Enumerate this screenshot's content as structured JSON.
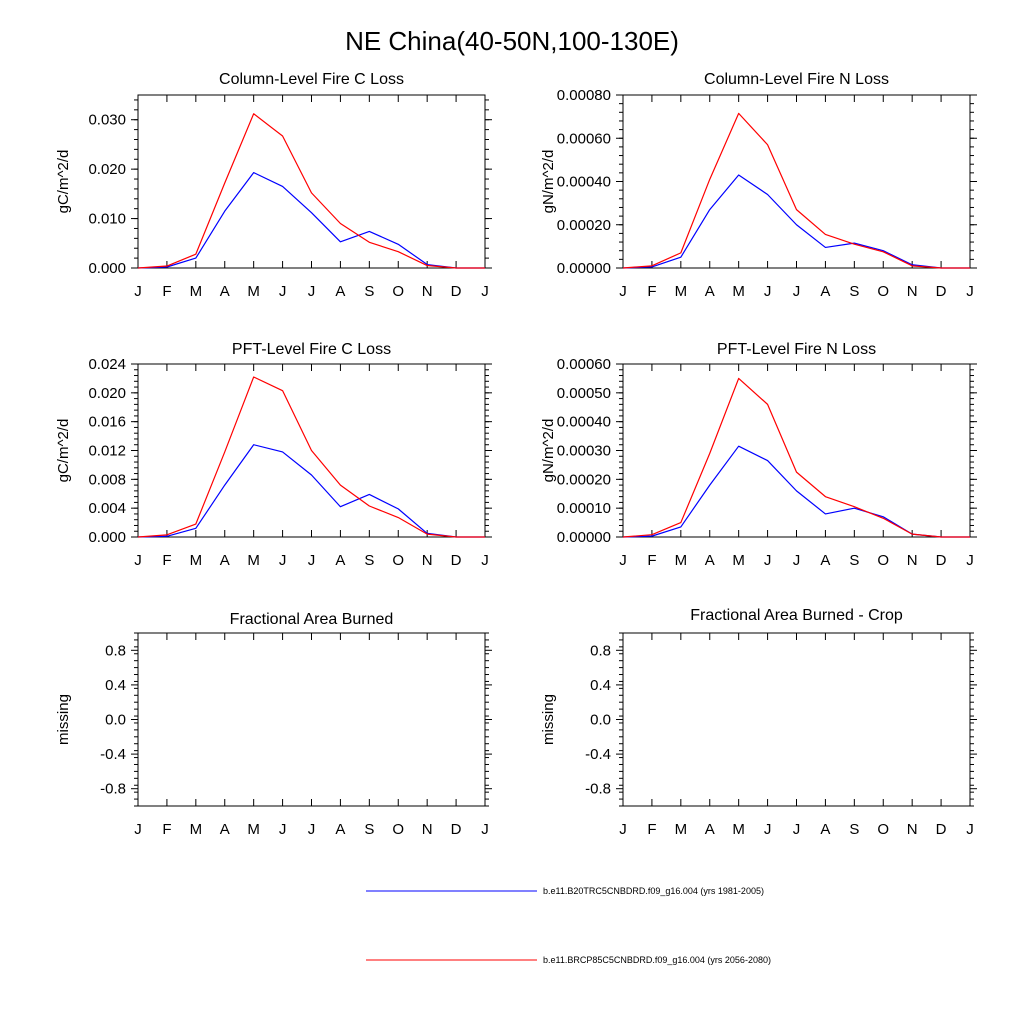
{
  "figure_title": "NE China(40-50N,100-130E)",
  "colors": {
    "series_1": "#0000ff",
    "series_2": "#ff0000",
    "axes": "#000000"
  },
  "legend": [
    {
      "label": "b.e11.B20TRC5CNBDRD.f09_g16.004 (yrs 1981-2005)",
      "color": "#0000ff"
    },
    {
      "label": "b.e11.BRCP85C5CNBDRD.f09_g16.004 (yrs 2056-2080)",
      "color": "#ff0000"
    }
  ],
  "chart_data": [
    {
      "type": "line",
      "title": "Column-Level Fire C Loss",
      "ylabel": "gC/m^2/d",
      "xlabel": "",
      "categories": [
        "J",
        "F",
        "M",
        "A",
        "M",
        "J",
        "J",
        "A",
        "S",
        "O",
        "N",
        "D",
        "J"
      ],
      "x": [
        0,
        1,
        2,
        3,
        4,
        5,
        6,
        7,
        8,
        9,
        10,
        11,
        12
      ],
      "ylim": [
        0,
        0.035
      ],
      "yticks": [
        0,
        0.01,
        0.02,
        0.03
      ],
      "ytick_labels": [
        "0.000",
        "0.010",
        "0.020",
        "0.030"
      ],
      "series": [
        {
          "name": "b.e11.B20TRC5CNBDRD.f09_g16.004 (yrs 1981-2005)",
          "color": "#0000ff",
          "values": [
            0.0,
            0.0002,
            0.002,
            0.0115,
            0.0193,
            0.0165,
            0.0112,
            0.0053,
            0.0074,
            0.0048,
            0.0007,
            0.0,
            0.0
          ]
        },
        {
          "name": "b.e11.BRCP85C5CNBDRD.f09_g16.004 (yrs 2056-2080)",
          "color": "#ff0000",
          "values": [
            0.0,
            0.0004,
            0.0028,
            0.0172,
            0.0312,
            0.0267,
            0.0152,
            0.009,
            0.0052,
            0.0033,
            0.0005,
            0.0,
            0.0
          ]
        }
      ]
    },
    {
      "type": "line",
      "title": "Column-Level Fire N Loss",
      "ylabel": "gN/m^2/d",
      "xlabel": "",
      "categories": [
        "J",
        "F",
        "M",
        "A",
        "M",
        "J",
        "J",
        "A",
        "S",
        "O",
        "N",
        "D",
        "J"
      ],
      "x": [
        0,
        1,
        2,
        3,
        4,
        5,
        6,
        7,
        8,
        9,
        10,
        11,
        12
      ],
      "ylim": [
        0,
        0.0008
      ],
      "yticks": [
        0,
        0.0002,
        0.0004,
        0.0006,
        0.0008
      ],
      "ytick_labels": [
        "0.00000",
        "0.00020",
        "0.00040",
        "0.00060",
        "0.00080"
      ],
      "series": [
        {
          "name": "b.e11.B20TRC5CNBDRD.f09_g16.004 (yrs 1981-2005)",
          "color": "#0000ff",
          "values": [
            0.0,
            5e-06,
            5e-05,
            0.00027,
            0.00043,
            0.00034,
            0.0002,
            9.5e-05,
            0.000115,
            8e-05,
            1.5e-05,
            0.0,
            0.0
          ]
        },
        {
          "name": "b.e11.BRCP85C5CNBDRD.f09_g16.004 (yrs 2056-2080)",
          "color": "#ff0000",
          "values": [
            0.0,
            1e-05,
            7e-05,
            0.00041,
            0.000715,
            0.00057,
            0.00027,
            0.000155,
            0.00011,
            7.5e-05,
            1e-05,
            0.0,
            0.0
          ]
        }
      ]
    },
    {
      "type": "line",
      "title": "PFT-Level Fire C Loss",
      "ylabel": "gC/m^2/d",
      "xlabel": "",
      "categories": [
        "J",
        "F",
        "M",
        "A",
        "M",
        "J",
        "J",
        "A",
        "S",
        "O",
        "N",
        "D",
        "J"
      ],
      "x": [
        0,
        1,
        2,
        3,
        4,
        5,
        6,
        7,
        8,
        9,
        10,
        11,
        12
      ],
      "ylim": [
        0,
        0.024
      ],
      "yticks": [
        0,
        0.004,
        0.008,
        0.012,
        0.016,
        0.02,
        0.024
      ],
      "ytick_labels": [
        "0.000",
        "0.004",
        "0.008",
        "0.012",
        "0.016",
        "0.020",
        "0.024"
      ],
      "series": [
        {
          "name": "b.e11.B20TRC5CNBDRD.f09_g16.004 (yrs 1981-2005)",
          "color": "#0000ff",
          "values": [
            0.0,
            0.0001,
            0.0012,
            0.0072,
            0.0128,
            0.0118,
            0.0086,
            0.0042,
            0.0059,
            0.0039,
            0.0005,
            0.0,
            0.0
          ]
        },
        {
          "name": "b.e11.BRCP85C5CNBDRD.f09_g16.004 (yrs 2056-2080)",
          "color": "#ff0000",
          "values": [
            0.0,
            0.0003,
            0.0018,
            0.0118,
            0.0222,
            0.0203,
            0.012,
            0.0072,
            0.0043,
            0.0027,
            0.0004,
            0.0,
            0.0
          ]
        }
      ]
    },
    {
      "type": "line",
      "title": "PFT-Level Fire N Loss",
      "ylabel": "gN/m^2/d",
      "xlabel": "",
      "categories": [
        "J",
        "F",
        "M",
        "A",
        "M",
        "J",
        "J",
        "A",
        "S",
        "O",
        "N",
        "D",
        "J"
      ],
      "x": [
        0,
        1,
        2,
        3,
        4,
        5,
        6,
        7,
        8,
        9,
        10,
        11,
        12
      ],
      "ylim": [
        0,
        0.0006
      ],
      "yticks": [
        0,
        0.0001,
        0.0002,
        0.0003,
        0.0004,
        0.0005,
        0.0006
      ],
      "ytick_labels": [
        "0.00000",
        "0.00010",
        "0.00020",
        "0.00030",
        "0.00040",
        "0.00050",
        "0.00060"
      ],
      "series": [
        {
          "name": "b.e11.B20TRC5CNBDRD.f09_g16.004 (yrs 1981-2005)",
          "color": "#0000ff",
          "values": [
            0.0,
            3e-06,
            3.5e-05,
            0.00018,
            0.000315,
            0.000265,
            0.00016,
            8e-05,
            0.0001,
            7e-05,
            1e-05,
            0.0,
            0.0
          ]
        },
        {
          "name": "b.e11.BRCP85C5CNBDRD.f09_g16.004 (yrs 2056-2080)",
          "color": "#ff0000",
          "values": [
            0.0,
            8e-06,
            5e-05,
            0.00029,
            0.00055,
            0.00046,
            0.000225,
            0.00014,
            0.000105,
            6.5e-05,
            1e-05,
            0.0,
            0.0
          ]
        }
      ]
    },
    {
      "type": "line",
      "title": "Fractional Area Burned",
      "ylabel": "missing",
      "xlabel": "",
      "categories": [
        "J",
        "F",
        "M",
        "A",
        "M",
        "J",
        "J",
        "A",
        "S",
        "O",
        "N",
        "D",
        "J"
      ],
      "x": [
        0,
        1,
        2,
        3,
        4,
        5,
        6,
        7,
        8,
        9,
        10,
        11,
        12
      ],
      "ylim": [
        -1,
        1
      ],
      "yticks": [
        -0.8,
        -0.4,
        0,
        0.4,
        0.8
      ],
      "ytick_labels": [
        "-0.8",
        "-0.4",
        "0.0",
        "0.4",
        "0.8"
      ],
      "series": []
    },
    {
      "type": "line",
      "title": "Fractional Area Burned - Crop",
      "ylabel": "missing",
      "xlabel": "",
      "categories": [
        "J",
        "F",
        "M",
        "A",
        "M",
        "J",
        "J",
        "A",
        "S",
        "O",
        "N",
        "D",
        "J"
      ],
      "x": [
        0,
        1,
        2,
        3,
        4,
        5,
        6,
        7,
        8,
        9,
        10,
        11,
        12
      ],
      "ylim": [
        -1,
        1
      ],
      "yticks": [
        -0.8,
        -0.4,
        0,
        0.4,
        0.8
      ],
      "ytick_labels": [
        "-0.8",
        "-0.4",
        "0.0",
        "0.4",
        "0.8"
      ],
      "series": []
    }
  ]
}
